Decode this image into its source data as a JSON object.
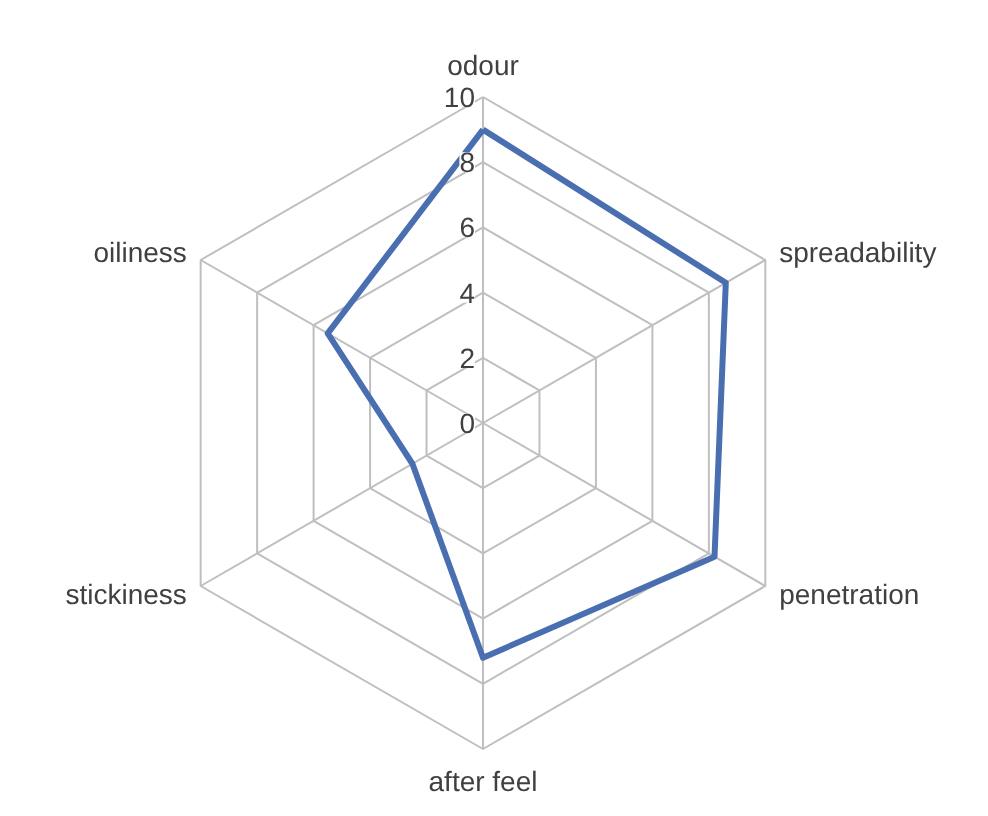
{
  "chart_data": {
    "type": "radar",
    "categories": [
      "odour",
      "spreadability",
      "penetration",
      "after feel",
      "stickiness",
      "oiliness"
    ],
    "series": [
      {
        "color": "#4a6fb0",
        "values": [
          9.0,
          8.6,
          8.2,
          7.2,
          2.5,
          5.5
        ]
      }
    ],
    "ylim": [
      0,
      10
    ],
    "yticks": [
      0,
      2,
      4,
      6,
      8,
      10
    ],
    "grid": true
  }
}
